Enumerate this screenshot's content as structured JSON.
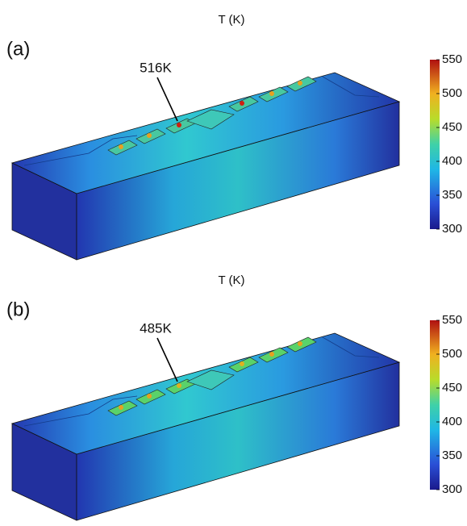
{
  "panels": [
    {
      "label": "(a)",
      "colorbar": {
        "title": "T (K)",
        "lim": [
          300,
          550
        ],
        "ticks": [
          300,
          350,
          400,
          450,
          500,
          550
        ]
      },
      "annotation": "516K"
    },
    {
      "label": "(b)",
      "colorbar": {
        "title": "T (K)",
        "lim": [
          300,
          550
        ],
        "ticks": [
          300,
          350,
          400,
          450,
          500,
          550
        ]
      },
      "annotation": "485K"
    }
  ]
}
